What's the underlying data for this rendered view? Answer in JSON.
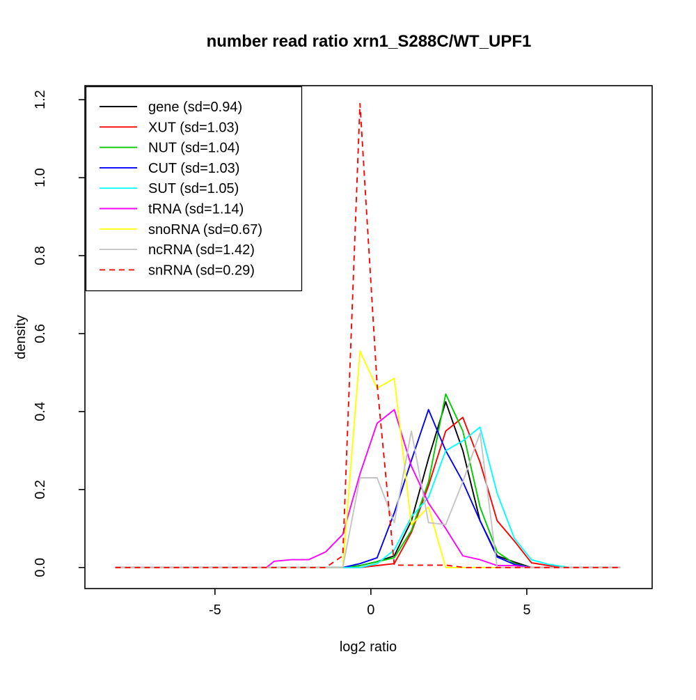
{
  "page": {
    "background": "#ffffff",
    "foreground": "#000000"
  },
  "chart_data": {
    "type": "line",
    "title": "number read ratio xrn1_S288C/WT_UPF1",
    "xlabel": "log2 ratio",
    "ylabel": "density",
    "xlim": [
      -9.17,
      9.02
    ],
    "ylim": [
      -0.054,
      1.236
    ],
    "xticks": [
      -5,
      0,
      5
    ],
    "xtick_labels": [
      "-5",
      "0",
      "5"
    ],
    "yticks": [
      0.0,
      0.2,
      0.4,
      0.6,
      0.8,
      1.0,
      1.2
    ],
    "ytick_labels": [
      "0.0",
      "0.2",
      "0.4",
      "0.6",
      "0.8",
      "1.0",
      "1.2"
    ],
    "grid": false,
    "legend_position": "top-left",
    "series": [
      {
        "name": "gene",
        "sd": 0.94,
        "label": "gene (sd=0.94)",
        "color": "#000000",
        "dash": null,
        "x": [
          -8.2,
          -0.9,
          -0.35,
          0.2,
          0.75,
          1.3,
          1.85,
          2.4,
          2.95,
          3.5,
          4.05,
          4.6,
          5.15,
          8.0
        ],
        "y": [
          0,
          0,
          0.005,
          0.015,
          0.03,
          0.12,
          0.28,
          0.425,
          0.3,
          0.12,
          0.03,
          0.014,
          0,
          0
        ]
      },
      {
        "name": "XUT",
        "sd": 1.03,
        "label": "XUT (sd=1.03)",
        "color": "#ff0000",
        "dash": null,
        "x": [
          -8.2,
          -0.35,
          0.2,
          0.75,
          1.3,
          1.85,
          2.4,
          2.95,
          3.5,
          4.05,
          4.6,
          5.15,
          5.7,
          6.25,
          8.0
        ],
        "y": [
          0,
          0,
          0.005,
          0.01,
          0.09,
          0.21,
          0.35,
          0.385,
          0.27,
          0.12,
          0.068,
          0.012,
          0.005,
          0,
          0
        ]
      },
      {
        "name": "NUT",
        "sd": 1.04,
        "label": "NUT (sd=1.04)",
        "color": "#00cc00",
        "dash": null,
        "x": [
          -8.2,
          -0.9,
          -0.35,
          0.2,
          0.75,
          1.3,
          1.85,
          2.4,
          2.95,
          3.5,
          4.05,
          4.6,
          5.15,
          8.0
        ],
        "y": [
          0,
          0,
          0.005,
          0.015,
          0.025,
          0.095,
          0.22,
          0.445,
          0.35,
          0.155,
          0.04,
          0.01,
          0,
          0
        ]
      },
      {
        "name": "CUT",
        "sd": 1.03,
        "label": "CUT (sd=1.03)",
        "color": "#0000ff",
        "dash": null,
        "x": [
          -8.2,
          -0.9,
          -0.35,
          0.2,
          0.75,
          1.3,
          1.85,
          2.4,
          2.95,
          3.5,
          4.05,
          4.6,
          5.15,
          8.0
        ],
        "y": [
          0,
          0,
          0.01,
          0.025,
          0.14,
          0.275,
          0.405,
          0.3,
          0.22,
          0.12,
          0.027,
          0.008,
          0,
          0
        ]
      },
      {
        "name": "SUT",
        "sd": 1.05,
        "label": "SUT (sd=1.05)",
        "color": "#00ffff",
        "dash": null,
        "x": [
          -8.2,
          -0.35,
          0.2,
          0.75,
          1.3,
          1.85,
          2.4,
          2.95,
          3.5,
          4.05,
          4.6,
          5.15,
          5.7,
          6.4,
          8.0
        ],
        "y": [
          0,
          0,
          0.01,
          0.045,
          0.13,
          0.18,
          0.3,
          0.325,
          0.36,
          0.19,
          0.075,
          0.02,
          0.008,
          0,
          0
        ]
      },
      {
        "name": "tRNA",
        "sd": 1.14,
        "label": "tRNA (sd=1.14)",
        "color": "#ff00ff",
        "dash": null,
        "x": [
          -8.2,
          -3.35,
          -3.1,
          -2.55,
          -2.0,
          -1.45,
          -0.9,
          -0.35,
          0.2,
          0.75,
          1.3,
          1.85,
          2.4,
          2.95,
          3.5,
          4.05,
          4.6,
          5.15,
          8.0
        ],
        "y": [
          0,
          0,
          0.016,
          0.02,
          0.02,
          0.04,
          0.085,
          0.24,
          0.37,
          0.405,
          0.26,
          0.165,
          0.1,
          0.03,
          0.02,
          0.005,
          0.005,
          0,
          0
        ]
      },
      {
        "name": "snoRNA",
        "sd": 0.67,
        "label": "snoRNA (sd=0.67)",
        "color": "#ffff00",
        "dash": null,
        "x": [
          -8.2,
          -0.9,
          -0.35,
          0.2,
          0.75,
          1.3,
          1.85,
          2.4,
          8.0
        ],
        "y": [
          0,
          0,
          0.555,
          0.46,
          0.485,
          0.11,
          0.155,
          0,
          0
        ]
      },
      {
        "name": "ncRNA",
        "sd": 1.42,
        "label": "ncRNA (sd=1.42)",
        "color": "#c4c4c4",
        "dash": null,
        "x": [
          -8.2,
          -0.9,
          -0.35,
          0.2,
          0.75,
          1.3,
          1.85,
          2.4,
          2.95,
          3.5,
          4.05,
          8.0
        ],
        "y": [
          0,
          0,
          0.23,
          0.23,
          0.115,
          0.35,
          0.115,
          0.11,
          0.22,
          0.345,
          0,
          0
        ]
      },
      {
        "name": "snRNA",
        "sd": 0.29,
        "label": "snRNA (sd=0.29)",
        "color": "#ff0000",
        "dash": "8,6",
        "x": [
          -8.2,
          -1.45,
          -0.9,
          -0.35,
          0.2,
          0.75,
          2.4,
          3.0,
          8.0
        ],
        "y": [
          0,
          0,
          0.03,
          1.19,
          0.47,
          0.006,
          0.006,
          0,
          0
        ]
      }
    ]
  }
}
